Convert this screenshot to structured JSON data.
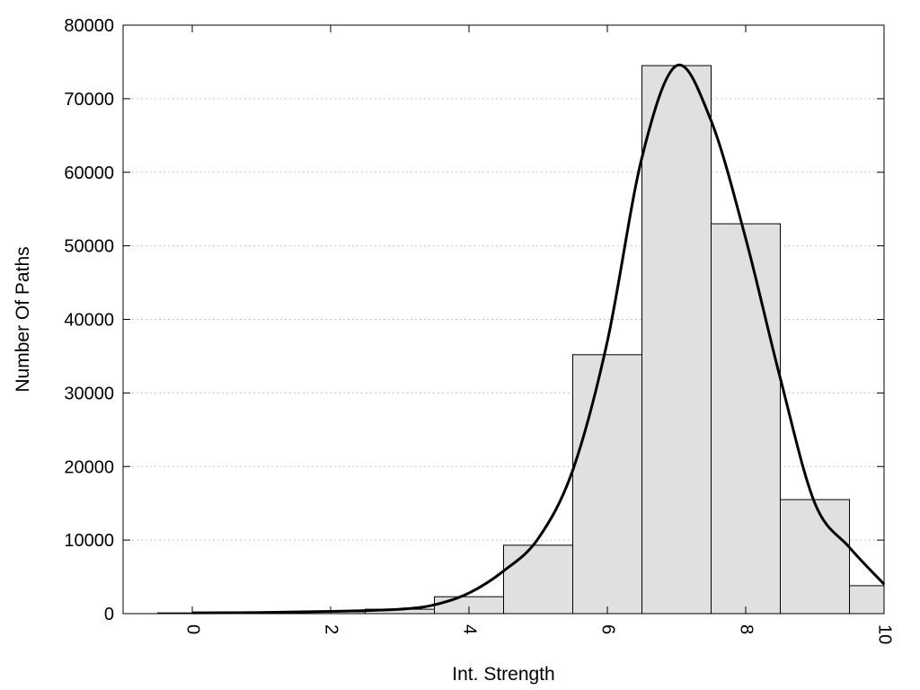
{
  "chart_data": {
    "type": "bar",
    "xlabel": "Int. Strength",
    "ylabel": "Number Of Paths",
    "xlim": [
      -1,
      10
    ],
    "ylim": [
      0,
      80000
    ],
    "xticks": [
      0,
      2,
      4,
      6,
      8,
      10
    ],
    "yticks": [
      0,
      10000,
      20000,
      30000,
      40000,
      50000,
      60000,
      70000,
      80000
    ],
    "grid": "horizontal dotted",
    "bin_width": 1,
    "bins": [
      {
        "x": 0,
        "value": 100
      },
      {
        "x": 1,
        "value": 150
      },
      {
        "x": 2,
        "value": 250
      },
      {
        "x": 3,
        "value": 600
      },
      {
        "x": 4,
        "value": 2300
      },
      {
        "x": 5,
        "value": 9300
      },
      {
        "x": 6,
        "value": 35200
      },
      {
        "x": 7,
        "value": 74500
      },
      {
        "x": 8,
        "value": 53000
      },
      {
        "x": 9,
        "value": 15500
      },
      {
        "x": 10,
        "value": 3800
      }
    ],
    "curve": {
      "x": [
        0,
        1,
        2,
        3,
        3.5,
        4,
        4.5,
        5,
        5.5,
        6,
        6.5,
        7,
        7.5,
        8,
        8.5,
        9,
        9.5,
        10
      ],
      "y": [
        100,
        150,
        300,
        600,
        1200,
        2800,
        5800,
        10200,
        19500,
        37000,
        62000,
        74500,
        67000,
        51000,
        32000,
        15000,
        9000,
        4000
      ]
    },
    "colors": {
      "bar_fill": "#e0e0e0",
      "bar_stroke": "#000000",
      "curve": "#000000",
      "grid": "#c8c8c8"
    }
  }
}
